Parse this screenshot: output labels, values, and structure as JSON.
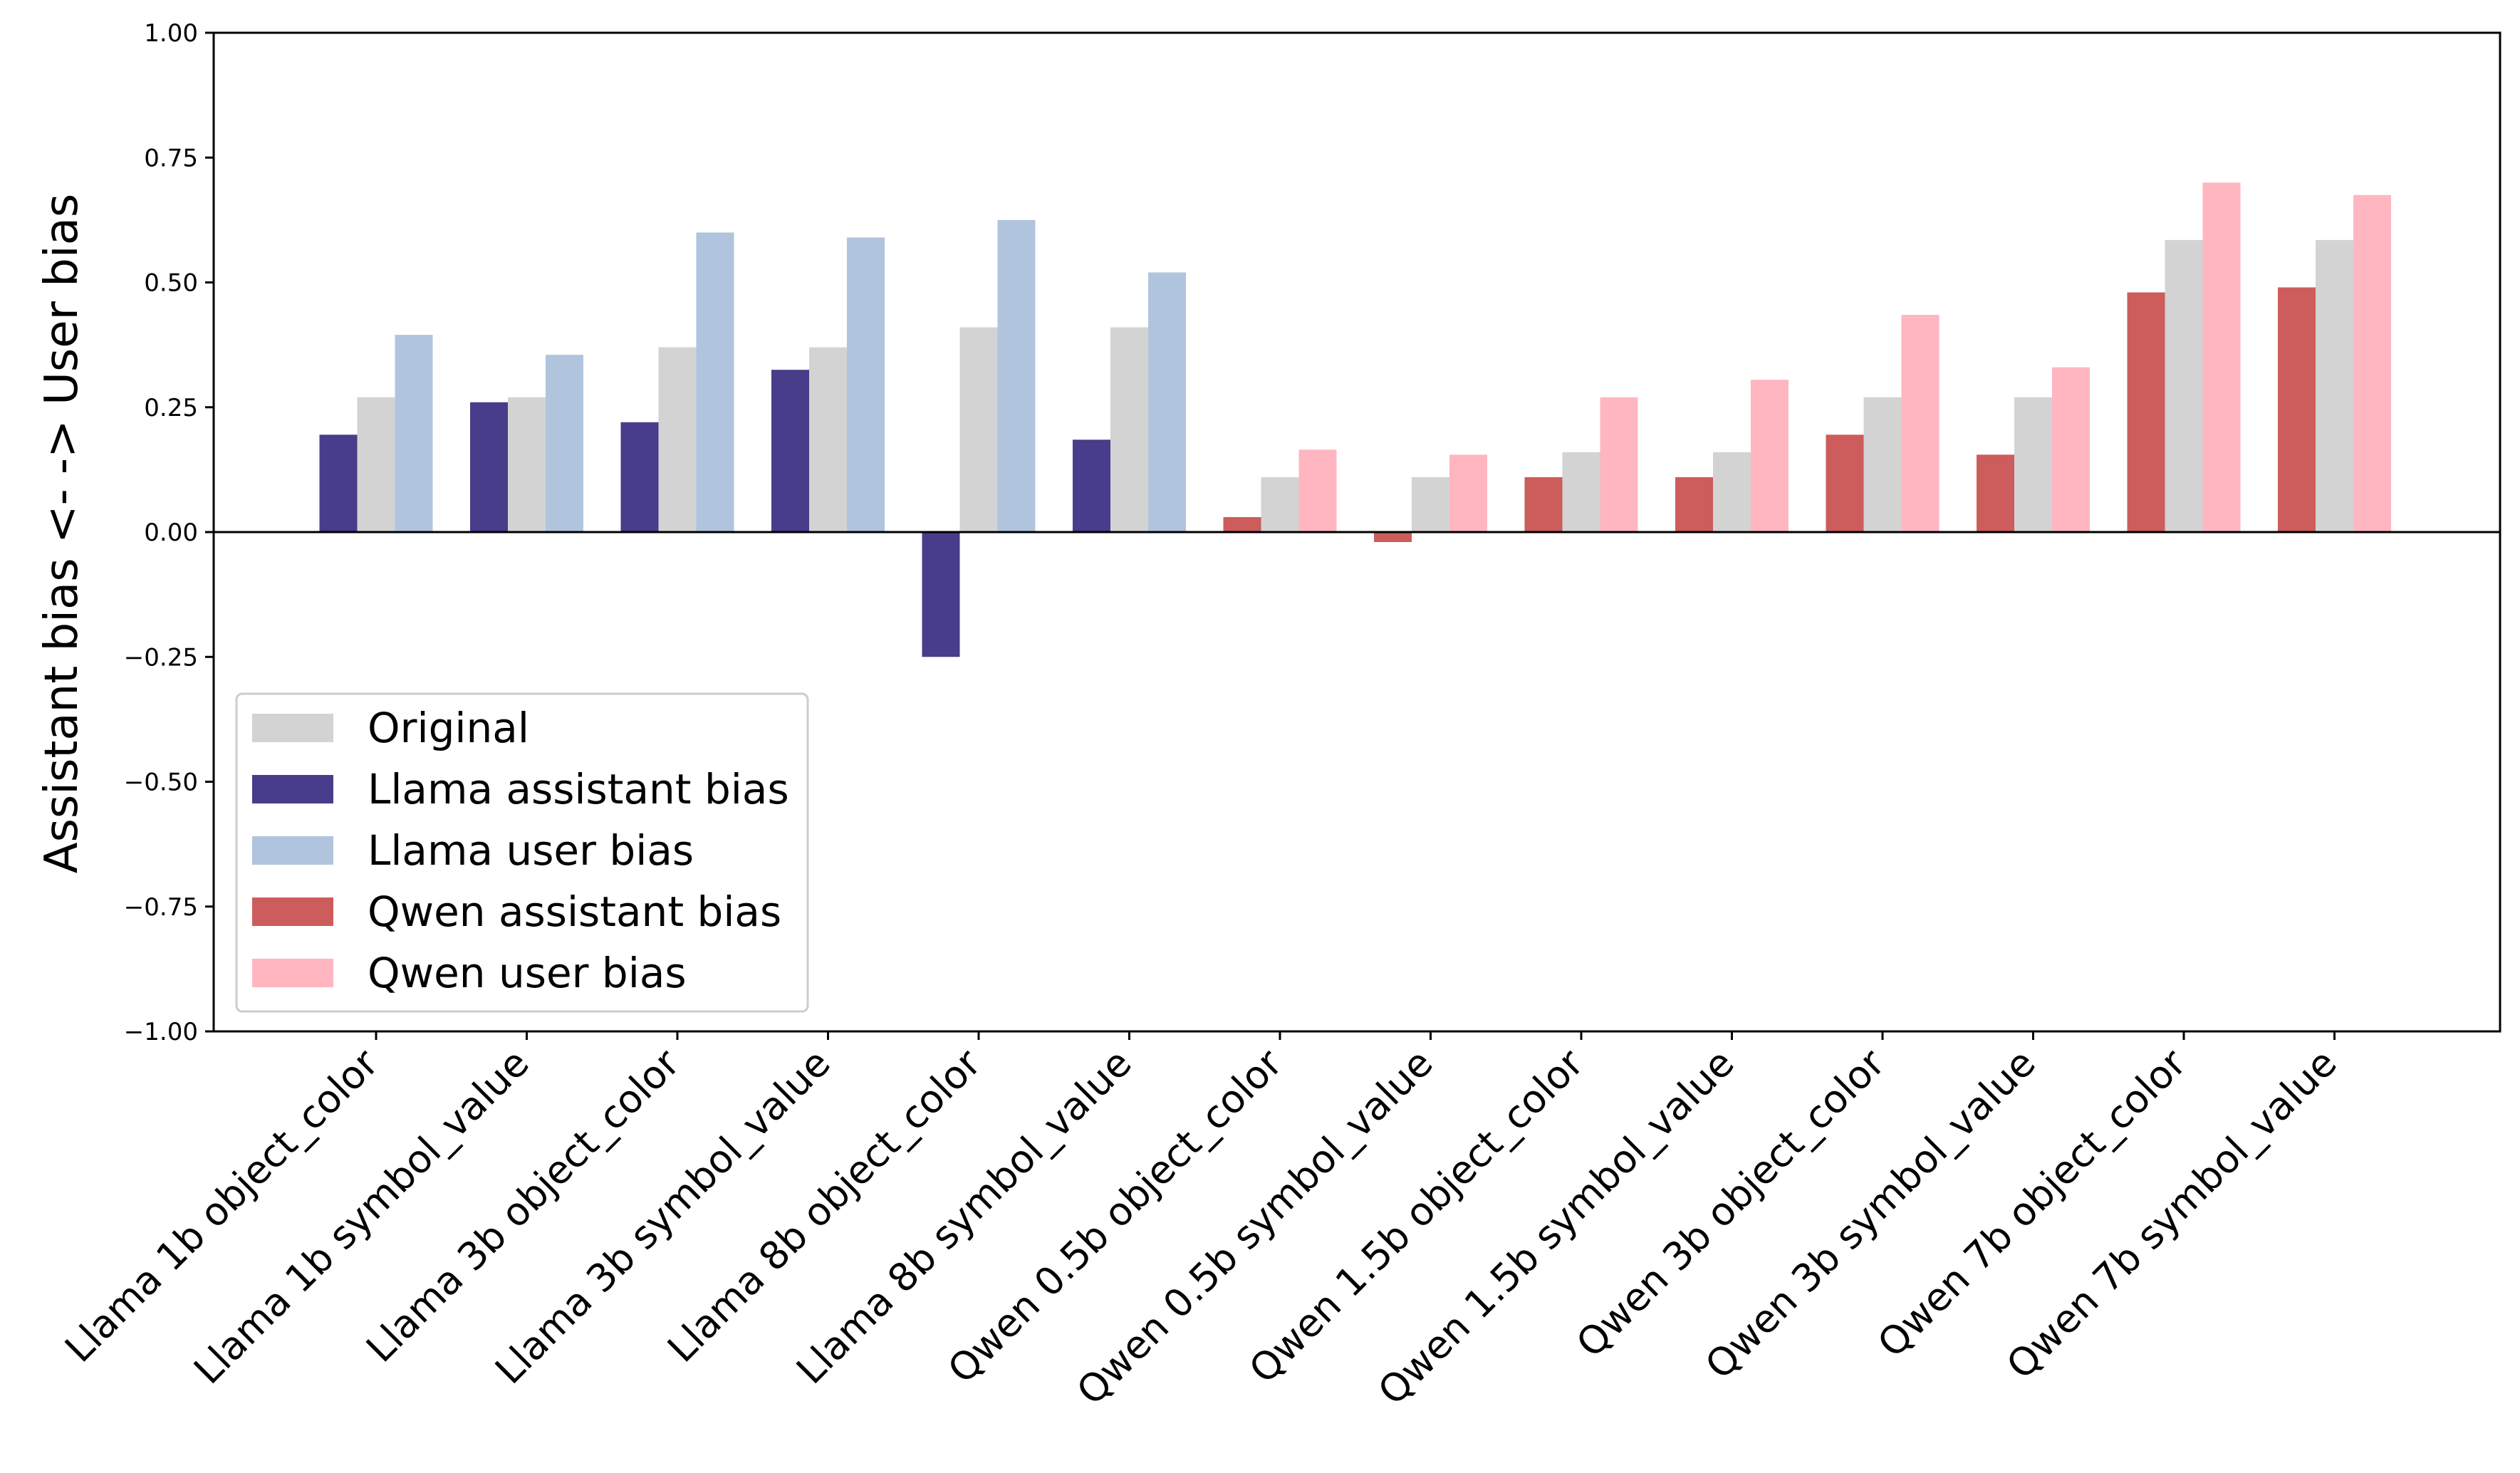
{
  "chart_data": {
    "type": "bar",
    "ylabel": "Assistant bias <-   -> User bias",
    "xlabel": "",
    "title": "",
    "ylim": [
      -1.0,
      1.0
    ],
    "yticks": [
      "−1.00",
      "−0.75",
      "−0.50",
      "−0.25",
      "0.00",
      "0.25",
      "0.50",
      "0.75",
      "1.00"
    ],
    "ytick_values": [
      -1.0,
      -0.75,
      -0.5,
      -0.25,
      0.0,
      0.25,
      0.5,
      0.75,
      1.0
    ],
    "grid": false,
    "legend_position": "lower-left",
    "categories": [
      "Llama 1b object_color",
      "Llama 1b symbol_value",
      "Llama 3b object_color",
      "Llama 3b symbol_value",
      "Llama 8b object_color",
      "Llama 8b symbol_value",
      "Qwen 0.5b object_color",
      "Qwen 0.5b symbol_value",
      "Qwen 1.5b object_color",
      "Qwen 1.5b symbol_value",
      "Qwen 3b object_color",
      "Qwen 3b symbol_value",
      "Qwen 7b object_color",
      "Qwen 7b symbol_value"
    ],
    "series": [
      {
        "name": "Original",
        "color": "#d3d3d3",
        "values": [
          0.27,
          0.27,
          0.37,
          0.37,
          0.41,
          0.41,
          0.11,
          0.11,
          0.16,
          0.16,
          0.27,
          0.27,
          0.585,
          0.585
        ]
      },
      {
        "name": "Llama assistant bias",
        "color": "#483d8b",
        "values": [
          0.195,
          0.26,
          0.22,
          0.325,
          -0.25,
          0.185,
          null,
          null,
          null,
          null,
          null,
          null,
          null,
          null
        ]
      },
      {
        "name": "Llama user bias",
        "color": "#b0c4de",
        "values": [
          0.395,
          0.355,
          0.6,
          0.59,
          0.625,
          0.52,
          null,
          null,
          null,
          null,
          null,
          null,
          null,
          null
        ]
      },
      {
        "name": "Qwen assistant bias",
        "color": "#cd5c5c",
        "values": [
          null,
          null,
          null,
          null,
          null,
          null,
          0.03,
          -0.02,
          0.11,
          0.11,
          0.195,
          0.155,
          0.48,
          0.49
        ]
      },
      {
        "name": "Qwen user bias",
        "color": "#ffb6c1",
        "values": [
          null,
          null,
          null,
          null,
          null,
          null,
          0.165,
          0.155,
          0.27,
          0.305,
          0.435,
          0.33,
          0.7,
          0.675
        ]
      }
    ],
    "legend": [
      "Original",
      "Llama assistant bias",
      "Llama user bias",
      "Qwen assistant bias",
      "Qwen user bias"
    ]
  }
}
